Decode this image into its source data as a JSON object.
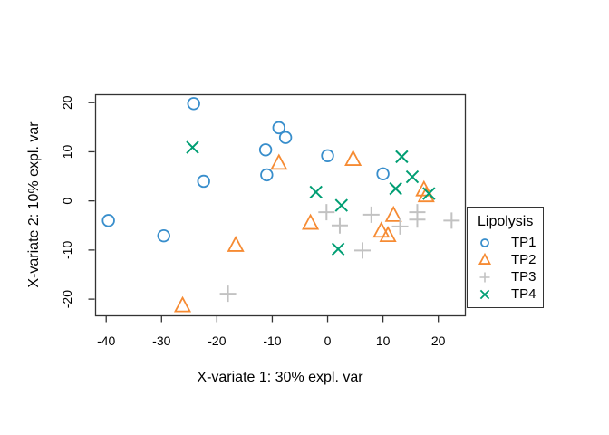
{
  "chart_data": {
    "type": "scatter",
    "title": "",
    "xlabel": "X-variate 1: 30% expl. var",
    "ylabel": "X-variate 2: 10% expl. var",
    "xlim": [
      -42,
      24.8
    ],
    "ylim": [
      -23.3,
      21.7
    ],
    "xticks": [
      -40,
      -30,
      -20,
      -10,
      0,
      10,
      20
    ],
    "yticks": [
      -20,
      -10,
      0,
      10,
      20
    ],
    "grid": false,
    "legend_position": "right-outside",
    "series": [
      {
        "name": "TP1",
        "marker": "circle",
        "color": "#388ECC",
        "points": [
          [
            -24.2,
            19.8
          ],
          [
            -22.4,
            4.0
          ],
          [
            -39.6,
            -4.0
          ],
          [
            -29.6,
            -7.1
          ],
          [
            -8.8,
            14.9
          ],
          [
            -7.6,
            12.9
          ],
          [
            -11.2,
            10.4
          ],
          [
            -11.0,
            5.3
          ],
          [
            0.0,
            9.2
          ],
          [
            10.0,
            5.5
          ]
        ]
      },
      {
        "name": "TP2",
        "marker": "triangle-up",
        "color": "#F68B33",
        "points": [
          [
            -8.8,
            7.6
          ],
          [
            4.6,
            8.4
          ],
          [
            -16.6,
            -9.1
          ],
          [
            -26.2,
            -21.4
          ],
          [
            -3.1,
            -4.6
          ],
          [
            11.9,
            -3.0
          ],
          [
            9.7,
            -6.2
          ],
          [
            10.9,
            -7.1
          ],
          [
            17.4,
            2.2
          ],
          [
            17.8,
            1.0
          ]
        ]
      },
      {
        "name": "TP3",
        "marker": "plus",
        "color": "#C2C2C2",
        "points": [
          [
            -18.0,
            -18.9
          ],
          [
            -0.2,
            -2.3
          ],
          [
            2.2,
            -5.0
          ],
          [
            6.3,
            -10.1
          ],
          [
            7.9,
            -2.8
          ],
          [
            13.1,
            -5.2
          ],
          [
            16.2,
            -2.3
          ],
          [
            16.2,
            -3.8
          ],
          [
            22.4,
            -4.0
          ]
        ]
      },
      {
        "name": "TP4",
        "marker": "x",
        "color": "#009E73",
        "points": [
          [
            -24.4,
            10.9
          ],
          [
            -2.1,
            1.8
          ],
          [
            2.5,
            -0.9
          ],
          [
            1.9,
            -9.8
          ],
          [
            13.4,
            9.0
          ],
          [
            15.3,
            4.9
          ],
          [
            12.3,
            2.5
          ],
          [
            18.3,
            1.5
          ]
        ]
      }
    ]
  },
  "legend": {
    "title": "Lipolysis",
    "items": [
      {
        "label": "TP1",
        "marker": "circle",
        "color": "#388ECC"
      },
      {
        "label": "TP2",
        "marker": "triangle-up",
        "color": "#F68B33"
      },
      {
        "label": "TP3",
        "marker": "plus",
        "color": "#C2C2C2"
      },
      {
        "label": "TP4",
        "marker": "x",
        "color": "#009E73"
      }
    ]
  },
  "style": {
    "box_color": "#333333",
    "background": "#FFFFFF"
  }
}
